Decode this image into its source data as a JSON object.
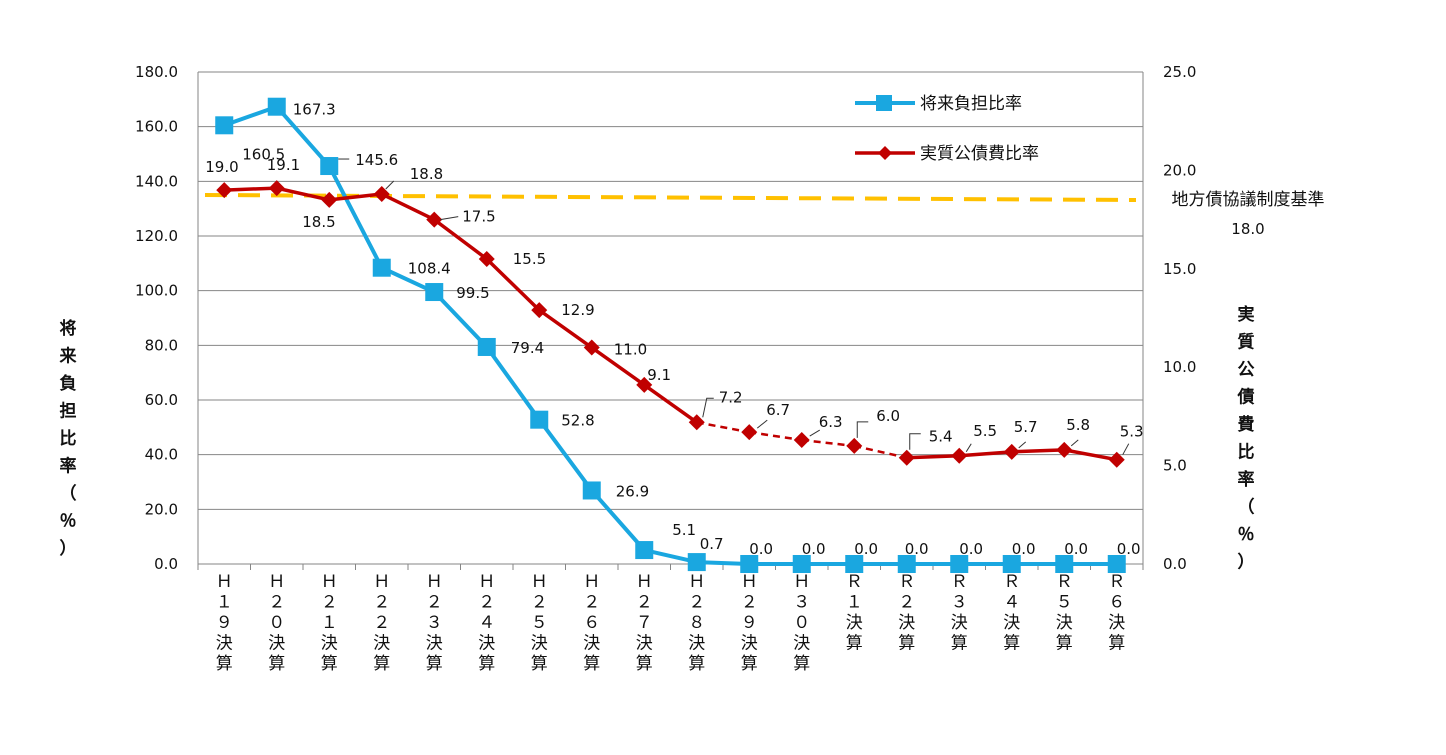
{
  "chart_data": {
    "type": "line",
    "categories": [
      "Ｈ１９決算",
      "Ｈ２０決算",
      "Ｈ２１決算",
      "Ｈ２２決算",
      "Ｈ２３決算",
      "Ｈ２４決算",
      "Ｈ２５決算",
      "Ｈ２６決算",
      "Ｈ２７決算",
      "Ｈ２８決算",
      "Ｈ２９決算",
      "Ｈ３０決算",
      "Ｒ１決算",
      "Ｒ２決算",
      "Ｒ３決算",
      "Ｒ４決算",
      "Ｒ５決算",
      "Ｒ６決算"
    ],
    "series": [
      {
        "name": "将来負担比率",
        "axis": "left",
        "color": "#1aa7e0",
        "marker": "square",
        "values": [
          160.5,
          167.3,
          145.6,
          108.4,
          99.5,
          79.4,
          52.8,
          26.9,
          5.1,
          0.7,
          0.0,
          0.0,
          0.0,
          0.0,
          0.0,
          0.0,
          0.0,
          0.0
        ],
        "labels": [
          "160.5",
          "167.3",
          "145.6",
          "108.4",
          "99.5",
          "79.4",
          "52.8",
          "26.9",
          "5.1",
          "0.7",
          "0.0",
          "0.0",
          "0.0",
          "0.0",
          "0.0",
          "0.0",
          "0.0",
          "0.0"
        ]
      },
      {
        "name": "実質公債費比率",
        "axis": "right",
        "color": "#c00000",
        "marker": "diamond",
        "values": [
          19.0,
          19.1,
          18.5,
          18.8,
          17.5,
          15.5,
          12.9,
          11.0,
          9.1,
          7.2,
          6.7,
          6.3,
          6.0,
          5.4,
          5.5,
          5.7,
          5.8,
          5.3
        ],
        "labels": [
          "19.0",
          "19.1",
          "18.5",
          "18.8",
          "17.5",
          "15.5",
          "12.9",
          "11.0",
          "9.1",
          "7.2",
          "6.7",
          "6.3",
          "6.0",
          "5.4",
          "5.5",
          "5.7",
          "5.8",
          "5.3"
        ],
        "dashed_segments": [
          [
            9,
            13
          ]
        ]
      }
    ],
    "reference_line": {
      "axis": "right",
      "value": 18.0,
      "label": "地方債協議制度基準",
      "value_label": "18.0",
      "color": "#ffc000"
    },
    "left_axis": {
      "label": "将来負担比率（％）",
      "ylim": [
        0,
        180
      ],
      "ticks": [
        "0.0",
        "20.0",
        "40.0",
        "60.0",
        "80.0",
        "100.0",
        "120.0",
        "140.0",
        "160.0",
        "180.0"
      ]
    },
    "right_axis": {
      "label": "実質公債費比率（％）",
      "ylim": [
        0,
        25
      ],
      "ticks": [
        "0.0",
        "5.0",
        "10.0",
        "15.0",
        "20.0",
        "25.0"
      ]
    },
    "legend": {
      "position": "top-right",
      "entries": [
        "将来負担比率",
        "実質公債費比率"
      ]
    },
    "grid": true
  }
}
